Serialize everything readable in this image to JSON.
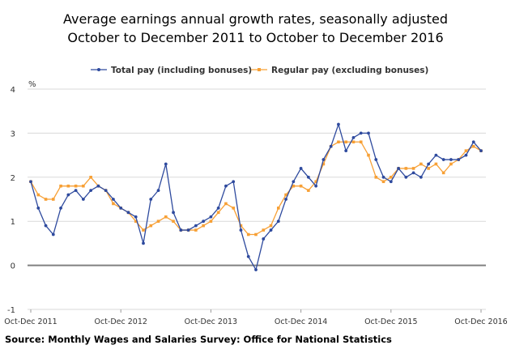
{
  "chart_data": {
    "type": "line",
    "title": "Average earnings annual growth rates, seasonally adjusted",
    "subtitle": "October to December 2011 to October to December 2016",
    "ylabel": "%",
    "ylim": [
      -1,
      4
    ],
    "yticks": [
      "-1",
      "0",
      "1",
      "2",
      "3",
      "4"
    ],
    "xticks": [
      "Oct-Dec 2011",
      "Oct-Dec 2012",
      "Oct-Dec 2013",
      "Oct-Dec 2014",
      "Oct-Dec 2015",
      "Oct-Dec 2016"
    ],
    "legend_position": "top",
    "grid": true,
    "series": [
      {
        "name": "Total pay (including bonuses)",
        "color": "#2e4a9e",
        "values": [
          1.9,
          1.3,
          0.9,
          0.7,
          1.3,
          1.6,
          1.7,
          1.5,
          1.7,
          1.8,
          1.7,
          1.5,
          1.3,
          1.2,
          1.1,
          0.5,
          1.5,
          1.7,
          2.3,
          1.2,
          0.8,
          0.8,
          0.9,
          1.0,
          1.1,
          1.3,
          1.8,
          1.9,
          0.8,
          0.2,
          -0.1,
          0.6,
          0.8,
          1.0,
          1.5,
          1.9,
          2.2,
          2.0,
          1.8,
          2.4,
          2.7,
          3.2,
          2.6,
          2.9,
          3.0,
          3.0,
          2.4,
          2.0,
          1.9,
          2.2,
          2.0,
          2.1,
          2.0,
          2.3,
          2.5,
          2.4,
          2.4,
          2.4,
          2.5,
          2.8,
          2.6
        ]
      },
      {
        "name": "Regular pay (excluding bonuses)",
        "color": "#f7a035",
        "values": [
          1.9,
          1.6,
          1.5,
          1.5,
          1.8,
          1.8,
          1.8,
          1.8,
          2.0,
          1.8,
          1.7,
          1.4,
          1.3,
          1.2,
          1.0,
          0.8,
          0.9,
          1.0,
          1.1,
          1.0,
          0.8,
          0.8,
          0.8,
          0.9,
          1.0,
          1.2,
          1.4,
          1.3,
          0.9,
          0.7,
          0.7,
          0.8,
          0.9,
          1.3,
          1.6,
          1.8,
          1.8,
          1.7,
          1.9,
          2.3,
          2.7,
          2.8,
          2.8,
          2.8,
          2.8,
          2.5,
          2.0,
          1.9,
          2.0,
          2.2,
          2.2,
          2.2,
          2.3,
          2.2,
          2.3,
          2.1,
          2.3,
          2.4,
          2.6,
          2.7,
          2.6
        ]
      }
    ],
    "source": "Source: Monthly Wages and Salaries Survey: Office for National Statistics"
  }
}
